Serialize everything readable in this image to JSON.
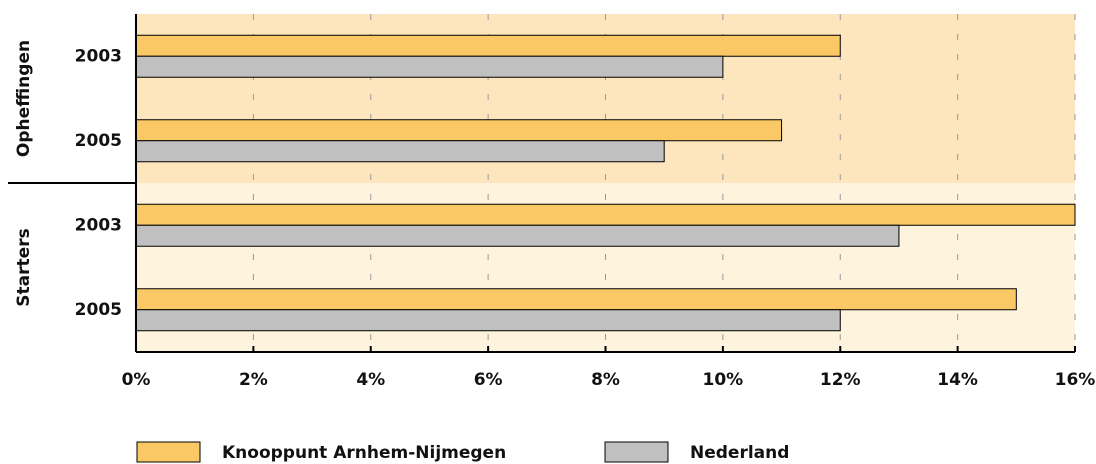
{
  "chart_data": {
    "type": "bar",
    "orientation": "horizontal",
    "groups": [
      "Opheffingen",
      "Starters"
    ],
    "categories": [
      "2003",
      "2005",
      "2003",
      "2005"
    ],
    "series": [
      {
        "name": "Knooppunt Arnhem-Nijmegen",
        "color": "#fac864",
        "values": [
          12,
          11,
          16,
          15
        ]
      },
      {
        "name": "Nederland",
        "color": "#c0c0c0",
        "values": [
          10,
          9,
          13,
          12
        ]
      }
    ],
    "xlim": [
      0,
      16
    ],
    "xticks": [
      {
        "value": 0,
        "label": "0%"
      },
      {
        "value": 2,
        "label": "2%"
      },
      {
        "value": 4,
        "label": "4%"
      },
      {
        "value": 6,
        "label": "6%"
      },
      {
        "value": 8,
        "label": "8%"
      },
      {
        "value": 10,
        "label": "10%"
      },
      {
        "value": 12,
        "label": "12%"
      },
      {
        "value": 14,
        "label": "14%"
      },
      {
        "value": 16,
        "label": "16%"
      }
    ],
    "grid": true,
    "legend": "bottom"
  }
}
